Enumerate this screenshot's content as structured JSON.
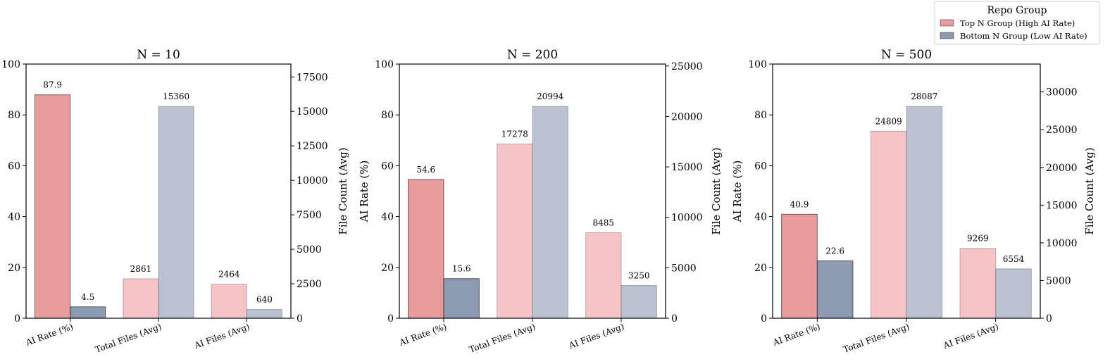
{
  "legend": {
    "title": "Repo Group",
    "placement": "top-right",
    "entries": [
      {
        "label": "Top N Group (High AI Rate)",
        "color": "#E89C9C"
      },
      {
        "label": "Bottom N Group (Low AI Rate)",
        "color": "#8E9AB2"
      }
    ]
  },
  "colors": {
    "top_rate": "#E89C9C",
    "bottom_rate": "#8E9AB2",
    "top_files": "#F4C4C6",
    "bottom_files": "#BAC1D0"
  },
  "chart_data": [
    {
      "type": "bar",
      "title": "N = 10",
      "categories": [
        "AI Rate (%)",
        "Total Files (Avg)",
        "AI Files (Avg)"
      ],
      "ylabel": "",
      "y2label": "File Count (Avg)",
      "ylim": [
        0,
        100
      ],
      "yticks": [
        "0",
        "20",
        "40",
        "60",
        "80",
        "100"
      ],
      "y2lim": [
        0,
        18432
      ],
      "y2ticks": [
        "0",
        "2500",
        "5000",
        "7500",
        "10000",
        "12500",
        "15000",
        "17500"
      ],
      "series": [
        {
          "name": "Top N Group (High AI Rate)",
          "values": [
            87.9,
            2861,
            2464
          ],
          "labels": [
            "87.9",
            "2861",
            "2464"
          ]
        },
        {
          "name": "Bottom N Group (Low AI Rate)",
          "values": [
            4.5,
            15360,
            640
          ],
          "labels": [
            "4.5",
            "15360",
            "640"
          ]
        }
      ]
    },
    {
      "type": "bar",
      "title": "N = 200",
      "categories": [
        "AI Rate (%)",
        "Total Files (Avg)",
        "AI Files (Avg)"
      ],
      "ylabel": "AI Rate (%)",
      "y2label": "File Count (Avg)",
      "ylim": [
        0,
        100
      ],
      "yticks": [
        "0",
        "20",
        "40",
        "60",
        "80",
        "100"
      ],
      "y2lim": [
        0,
        25193
      ],
      "y2ticks": [
        "0",
        "5000",
        "10000",
        "15000",
        "20000",
        "25000"
      ],
      "series": [
        {
          "name": "Top N Group (High AI Rate)",
          "values": [
            54.6,
            17278,
            8485
          ],
          "labels": [
            "54.6",
            "17278",
            "8485"
          ]
        },
        {
          "name": "Bottom N Group (Low AI Rate)",
          "values": [
            15.6,
            20994,
            3250
          ],
          "labels": [
            "15.6",
            "20994",
            "3250"
          ]
        }
      ]
    },
    {
      "type": "bar",
      "title": "N = 500",
      "categories": [
        "AI Rate (%)",
        "Total Files (Avg)",
        "AI Files (Avg)"
      ],
      "ylabel": "AI Rate (%)",
      "y2label": "File Count (Avg)",
      "ylim": [
        0,
        100
      ],
      "yticks": [
        "0",
        "20",
        "40",
        "60",
        "80",
        "100"
      ],
      "y2lim": [
        0,
        33704
      ],
      "y2ticks": [
        "0",
        "5000",
        "10000",
        "15000",
        "20000",
        "25000",
        "30000"
      ],
      "series": [
        {
          "name": "Top N Group (High AI Rate)",
          "values": [
            40.9,
            24809,
            9269
          ],
          "labels": [
            "40.9",
            "24809",
            "9269"
          ]
        },
        {
          "name": "Bottom N Group (Low AI Rate)",
          "values": [
            22.6,
            28087,
            6554
          ],
          "labels": [
            "22.6",
            "28087",
            "6554"
          ]
        }
      ]
    }
  ]
}
